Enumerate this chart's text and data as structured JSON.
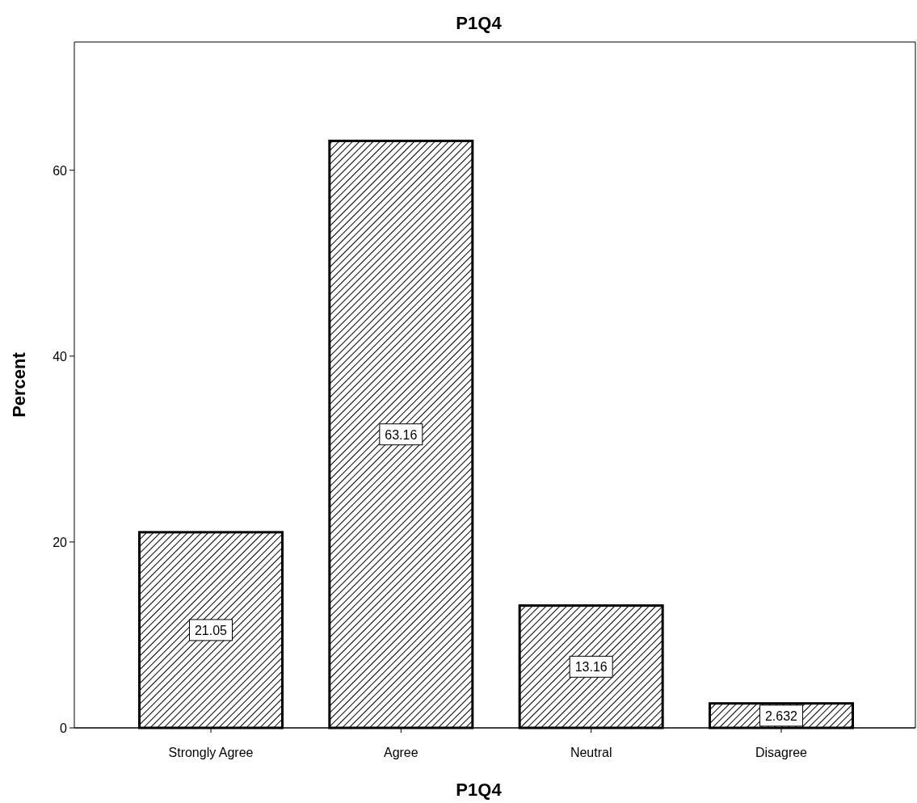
{
  "chart_data": {
    "type": "bar",
    "title": "P1Q4",
    "xlabel": "P1Q4",
    "ylabel": "Percent",
    "categories": [
      "Strongly Agree",
      "Agree",
      "Neutral",
      "Disagree"
    ],
    "values": [
      21.05,
      63.16,
      13.16,
      2.632
    ],
    "color": "#000000",
    "ylim": [
      0,
      73.8
    ],
    "yticks": [
      0,
      20,
      40,
      60
    ],
    "grid": false,
    "data_labels": true
  }
}
